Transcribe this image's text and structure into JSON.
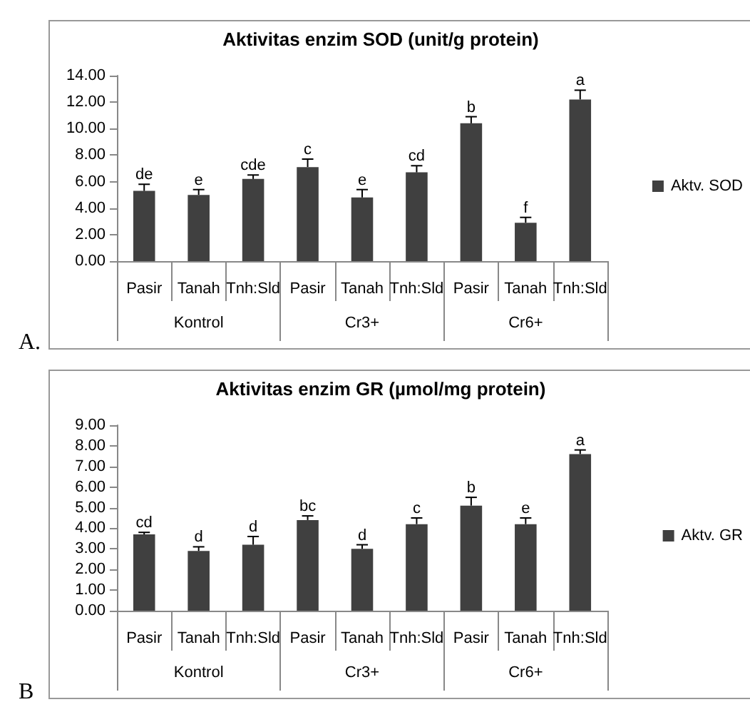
{
  "chart_data": [
    {
      "type": "bar",
      "title": "Aktivitas enzim SOD (unit/g protein)",
      "subtitle": "A.",
      "categories": [
        "Pasir",
        "Tanah",
        "Tnh:Sld",
        "Pasir",
        "Tanah",
        "Tnh:Sld",
        "Pasir",
        "Tanah",
        "Tnh:Sld"
      ],
      "series": [
        {
          "name": "Aktv. SOD",
          "color": "#404040",
          "values": [
            5.3,
            5.0,
            6.2,
            7.1,
            4.8,
            6.7,
            10.4,
            2.9,
            12.2
          ],
          "errors": [
            [
              5.3,
              5.8
            ],
            [
              5.0,
              5.4
            ],
            [
              6.2,
              6.5
            ],
            [
              7.1,
              7.7
            ],
            [
              4.8,
              5.4
            ],
            [
              6.7,
              7.2
            ],
            [
              10.4,
              10.9
            ],
            [
              2.9,
              3.3
            ],
            [
              12.2,
              12.9
            ]
          ],
          "value_labels": [
            "de",
            "e",
            "cde",
            "c",
            "e",
            "cd",
            "b",
            "f",
            "a"
          ]
        }
      ],
      "ylim": [
        0,
        14
      ],
      "yticks": [
        {
          "value": 0,
          "label": "0.00"
        },
        {
          "value": 2,
          "label": "2.00"
        },
        {
          "value": 4,
          "label": "4.00"
        },
        {
          "value": 6,
          "label": "6.00"
        },
        {
          "value": 8,
          "label": "8.00"
        },
        {
          "value": 10,
          "label": "10.00"
        },
        {
          "value": 12,
          "label": "12.00"
        },
        {
          "value": 14,
          "label": "14.00"
        }
      ],
      "grid": false,
      "legend": "right",
      "annotations": [
        "Kontrol",
        "Cr3+",
        "Cr6+"
      ]
    },
    {
      "type": "bar",
      "title": "Aktivitas enzim GR (µmol/mg protein)",
      "subtitle": "B",
      "categories": [
        "Pasir",
        "Tanah",
        "Tnh:Sld",
        "Pasir",
        "Tanah",
        "Tnh:Sld",
        "Pasir",
        "Tanah",
        "Tnh:Sld"
      ],
      "series": [
        {
          "name": "Aktv. GR",
          "color": "#404040",
          "values": [
            3.7,
            2.9,
            3.2,
            4.4,
            3.0,
            4.2,
            5.1,
            4.2,
            7.6
          ],
          "errors": [
            [
              3.7,
              3.8
            ],
            [
              2.9,
              3.1
            ],
            [
              3.2,
              3.6
            ],
            [
              4.4,
              4.6
            ],
            [
              3.0,
              3.2
            ],
            [
              4.2,
              4.5
            ],
            [
              5.1,
              5.5
            ],
            [
              4.2,
              4.5
            ],
            [
              7.6,
              7.8
            ]
          ],
          "value_labels": [
            "cd",
            "d",
            "d",
            "bc",
            "d",
            "c",
            "b",
            "e",
            "a"
          ]
        }
      ],
      "ylim": [
        0,
        9
      ],
      "yticks": [
        {
          "value": 0,
          "label": "0.00"
        },
        {
          "value": 1,
          "label": "1.00"
        },
        {
          "value": 2,
          "label": "2.00"
        },
        {
          "value": 3,
          "label": "3.00"
        },
        {
          "value": 4,
          "label": "4.00"
        },
        {
          "value": 5,
          "label": "5.00"
        },
        {
          "value": 6,
          "label": "6.00"
        },
        {
          "value": 7,
          "label": "7.00"
        },
        {
          "value": 8,
          "label": "8.00"
        },
        {
          "value": 9,
          "label": "9.00"
        }
      ],
      "grid": false,
      "legend": "right",
      "annotations": [
        "Kontrol",
        "Cr3+",
        "Cr6+"
      ]
    }
  ]
}
